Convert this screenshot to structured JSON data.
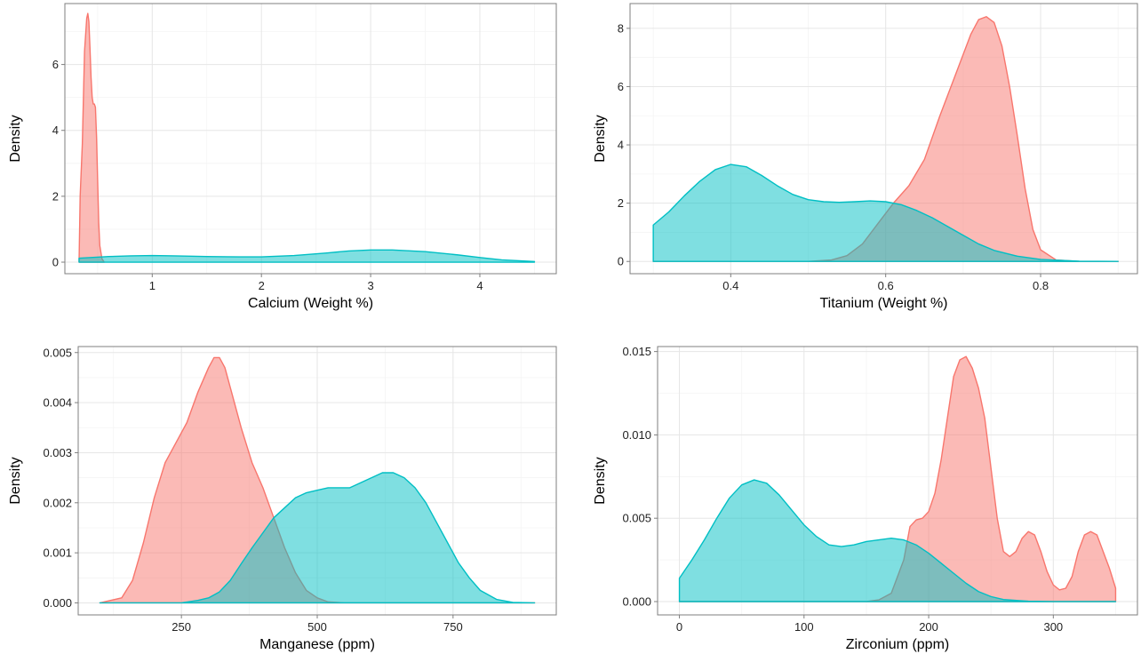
{
  "chart_data": [
    {
      "type": "area",
      "xlabel": "Calcium (Weight %)",
      "ylabel": "Density",
      "xlim": [
        0.2,
        4.7
      ],
      "ylim": [
        -0.35,
        7.85
      ],
      "xticks": [
        1,
        2,
        3,
        4
      ],
      "yticks": [
        0,
        2,
        4,
        6
      ],
      "tick_labels_x": [
        "1",
        "2",
        "3",
        "4"
      ],
      "tick_labels_y": [
        "0",
        "2",
        "4",
        "6"
      ],
      "grid": true,
      "legend": "none",
      "series": [
        {
          "color": "#F8766D",
          "x": [
            0.33,
            0.34,
            0.36,
            0.38,
            0.4,
            0.41,
            0.42,
            0.43,
            0.44,
            0.45,
            0.46,
            0.47,
            0.48,
            0.49,
            0.5,
            0.51,
            0.52,
            0.54,
            0.56
          ],
          "y": [
            0.0,
            2.0,
            3.6,
            6.4,
            7.4,
            7.55,
            7.3,
            6.5,
            5.6,
            5.0,
            4.8,
            4.8,
            4.7,
            3.8,
            2.5,
            1.2,
            0.5,
            0.1,
            0.0
          ]
        },
        {
          "color": "#00BFC4",
          "x": [
            0.33,
            0.6,
            0.8,
            1.0,
            1.2,
            1.5,
            1.8,
            2.0,
            2.3,
            2.6,
            2.8,
            3.0,
            3.2,
            3.5,
            3.8,
            4.0,
            4.2,
            4.5
          ],
          "y": [
            0.12,
            0.17,
            0.19,
            0.2,
            0.19,
            0.17,
            0.16,
            0.16,
            0.2,
            0.28,
            0.34,
            0.37,
            0.37,
            0.32,
            0.22,
            0.14,
            0.07,
            0.02
          ]
        }
      ]
    },
    {
      "type": "area",
      "xlabel": "Titanium (Weight %)",
      "ylabel": "Density",
      "xlim": [
        0.27,
        0.925
      ],
      "ylim": [
        -0.42,
        8.85
      ],
      "xticks": [
        0.4,
        0.6,
        0.8
      ],
      "yticks": [
        0,
        2,
        4,
        6,
        8
      ],
      "tick_labels_x": [
        "0.4",
        "0.6",
        "0.8"
      ],
      "tick_labels_y": [
        "0",
        "2",
        "4",
        "6",
        "8"
      ],
      "grid": true,
      "legend": "none",
      "series": [
        {
          "color": "#F8766D",
          "x": [
            0.3,
            0.5,
            0.53,
            0.55,
            0.57,
            0.59,
            0.61,
            0.63,
            0.65,
            0.67,
            0.69,
            0.7,
            0.71,
            0.72,
            0.73,
            0.74,
            0.75,
            0.76,
            0.77,
            0.78,
            0.79,
            0.8,
            0.82,
            0.85,
            0.9
          ],
          "y": [
            0.0,
            0.0,
            0.05,
            0.2,
            0.6,
            1.3,
            2.0,
            2.6,
            3.5,
            5.0,
            6.4,
            7.1,
            7.8,
            8.3,
            8.4,
            8.2,
            7.4,
            6.0,
            4.3,
            2.5,
            1.1,
            0.4,
            0.05,
            0.0,
            0.0
          ]
        },
        {
          "color": "#00BFC4",
          "x": [
            0.3,
            0.32,
            0.34,
            0.36,
            0.38,
            0.4,
            0.42,
            0.44,
            0.46,
            0.48,
            0.5,
            0.52,
            0.54,
            0.56,
            0.58,
            0.6,
            0.62,
            0.64,
            0.66,
            0.68,
            0.7,
            0.72,
            0.74,
            0.77,
            0.8,
            0.85,
            0.9
          ],
          "y": [
            1.25,
            1.7,
            2.25,
            2.75,
            3.15,
            3.33,
            3.25,
            2.95,
            2.6,
            2.3,
            2.12,
            2.05,
            2.03,
            2.05,
            2.08,
            2.05,
            1.95,
            1.75,
            1.5,
            1.2,
            0.9,
            0.6,
            0.38,
            0.18,
            0.07,
            0.01,
            0.0
          ]
        }
      ]
    },
    {
      "type": "area",
      "xlabel": "Manganese (ppm)",
      "ylabel": "Density",
      "xlim": [
        60,
        940
      ],
      "ylim": [
        -0.00024,
        0.00512
      ],
      "xticks": [
        250,
        500,
        750
      ],
      "yticks": [
        0,
        0.001,
        0.002,
        0.003,
        0.004,
        0.005
      ],
      "tick_labels_x": [
        "250",
        "500",
        "750"
      ],
      "tick_labels_y": [
        "0.000",
        "0.001",
        "0.002",
        "0.003",
        "0.004",
        "0.005"
      ],
      "grid": true,
      "legend": "none",
      "series": [
        {
          "color": "#F8766D",
          "x": [
            100,
            140,
            160,
            180,
            200,
            220,
            240,
            260,
            280,
            300,
            310,
            320,
            330,
            340,
            360,
            380,
            400,
            420,
            440,
            460,
            480,
            500,
            520,
            550,
            600,
            900
          ],
          "y": [
            0.0,
            0.0001,
            0.00045,
            0.0012,
            0.0021,
            0.0028,
            0.0032,
            0.0036,
            0.0042,
            0.0047,
            0.0049,
            0.0049,
            0.0047,
            0.0043,
            0.0035,
            0.0028,
            0.0023,
            0.0017,
            0.0011,
            0.0006,
            0.00025,
            0.0001,
            2e-05,
            0.0,
            0.0,
            0.0
          ]
        },
        {
          "color": "#00BFC4",
          "x": [
            100,
            250,
            280,
            300,
            320,
            340,
            360,
            380,
            400,
            420,
            440,
            460,
            480,
            500,
            520,
            540,
            560,
            580,
            600,
            620,
            640,
            660,
            680,
            700,
            720,
            740,
            760,
            780,
            800,
            830,
            860,
            900
          ],
          "y": [
            0.0,
            0.0,
            5e-05,
            0.0001,
            0.00022,
            0.00045,
            0.00078,
            0.0011,
            0.0014,
            0.0017,
            0.0019,
            0.0021,
            0.0022,
            0.00225,
            0.0023,
            0.0023,
            0.0023,
            0.0024,
            0.0025,
            0.0026,
            0.0026,
            0.0025,
            0.0023,
            0.002,
            0.0016,
            0.0012,
            0.0008,
            0.0005,
            0.00025,
            7e-05,
            1e-05,
            0.0
          ]
        }
      ]
    },
    {
      "type": "area",
      "xlabel": "Zirconium (ppm)",
      "ylabel": "Density",
      "xlim": [
        -17.5,
        367.5
      ],
      "ylim": [
        -0.0008,
        0.0153
      ],
      "xticks": [
        0,
        100,
        200,
        300
      ],
      "yticks": [
        0,
        0.005,
        0.01,
        0.015
      ],
      "tick_labels_x": [
        "0",
        "100",
        "200",
        "300"
      ],
      "tick_labels_y": [
        "0.000",
        "0.005",
        "0.010",
        "0.015"
      ],
      "grid": true,
      "legend": "none",
      "series": [
        {
          "color": "#F8766D",
          "x": [
            0,
            150,
            160,
            170,
            180,
            185,
            190,
            195,
            200,
            205,
            210,
            215,
            220,
            225,
            230,
            235,
            240,
            245,
            250,
            255,
            260,
            265,
            270,
            275,
            280,
            285,
            290,
            295,
            300,
            305,
            310,
            315,
            320,
            325,
            330,
            335,
            340,
            345,
            350
          ],
          "y": [
            0.0,
            0.0,
            0.0001,
            0.0005,
            0.0025,
            0.0045,
            0.0049,
            0.005,
            0.0054,
            0.0065,
            0.0085,
            0.011,
            0.0135,
            0.0145,
            0.0147,
            0.014,
            0.0128,
            0.011,
            0.008,
            0.005,
            0.003,
            0.0027,
            0.003,
            0.0038,
            0.0042,
            0.004,
            0.003,
            0.0018,
            0.001,
            0.0007,
            0.0008,
            0.0015,
            0.003,
            0.004,
            0.0042,
            0.004,
            0.003,
            0.002,
            0.0008
          ]
        },
        {
          "color": "#00BFC4",
          "x": [
            0,
            10,
            20,
            30,
            40,
            50,
            60,
            70,
            80,
            90,
            100,
            110,
            120,
            130,
            140,
            150,
            160,
            170,
            180,
            190,
            200,
            210,
            220,
            230,
            240,
            250,
            260,
            280,
            300,
            350
          ],
          "y": [
            0.0014,
            0.0025,
            0.0037,
            0.005,
            0.0062,
            0.007,
            0.0073,
            0.0071,
            0.0064,
            0.0055,
            0.0046,
            0.0039,
            0.0034,
            0.0033,
            0.0034,
            0.0036,
            0.0037,
            0.0038,
            0.0037,
            0.0034,
            0.0029,
            0.0023,
            0.0017,
            0.0011,
            0.0006,
            0.0003,
            0.00012,
            2e-05,
            0.0,
            0.0
          ]
        }
      ]
    }
  ]
}
